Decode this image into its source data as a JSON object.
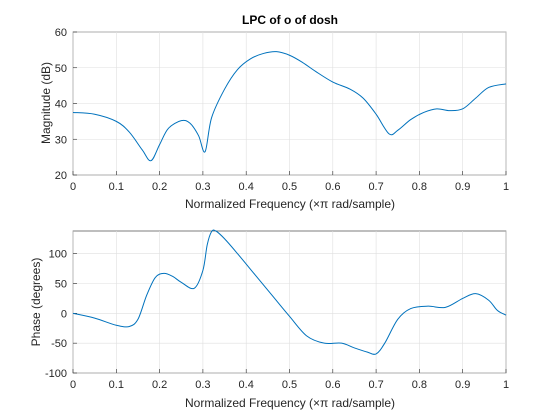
{
  "chart_data": [
    {
      "type": "line",
      "title": "LPC of o of dosh",
      "xlabel": "Normalized Frequency  (×π rad/sample)",
      "ylabel": "Magnitude (dB)",
      "xlim": [
        0,
        1
      ],
      "ylim": [
        20,
        60
      ],
      "xticks": [
        "0",
        "0.1",
        "0.2",
        "0.3",
        "0.4",
        "0.5",
        "0.6",
        "0.7",
        "0.8",
        "0.9",
        "1"
      ],
      "yticks": [
        "20",
        "30",
        "40",
        "50",
        "60"
      ],
      "grid": true,
      "series": [
        {
          "x": [
            0,
            0.05,
            0.1,
            0.13,
            0.16,
            0.18,
            0.2,
            0.22,
            0.25,
            0.27,
            0.29,
            0.305,
            0.32,
            0.35,
            0.38,
            0.41,
            0.44,
            0.47,
            0.5,
            0.53,
            0.56,
            0.6,
            0.64,
            0.67,
            0.7,
            0.73,
            0.75,
            0.78,
            0.81,
            0.84,
            0.87,
            0.9,
            0.93,
            0.96,
            1.0
          ],
          "values": [
            37.5,
            37,
            35,
            32,
            27,
            24,
            28.5,
            33,
            35.2,
            34.5,
            31,
            26.5,
            36,
            44,
            49.5,
            52.5,
            54,
            54.5,
            53.5,
            51.5,
            49,
            46,
            44,
            41.5,
            37,
            31.5,
            32.5,
            35.5,
            37.5,
            38.5,
            38,
            38.5,
            41.5,
            44.5,
            45.5
          ]
        }
      ],
      "line_color": "#0072bd"
    },
    {
      "type": "line",
      "title": "",
      "xlabel": "Normalized Frequency  (×π rad/sample)",
      "ylabel": "Phase (degrees)",
      "xlim": [
        0,
        1
      ],
      "ylim": [
        -100,
        138
      ],
      "xticks": [
        "0",
        "0.1",
        "0.2",
        "0.3",
        "0.4",
        "0.5",
        "0.6",
        "0.7",
        "0.8",
        "0.9",
        "1"
      ],
      "yticks": [
        "-100",
        "-50",
        "0",
        "50",
        "100"
      ],
      "grid": true,
      "series": [
        {
          "x": [
            0,
            0.05,
            0.1,
            0.13,
            0.15,
            0.17,
            0.19,
            0.21,
            0.23,
            0.25,
            0.28,
            0.3,
            0.31,
            0.32,
            0.33,
            0.35,
            0.38,
            0.42,
            0.46,
            0.5,
            0.54,
            0.58,
            0.62,
            0.65,
            0.68,
            0.7,
            0.72,
            0.75,
            0.78,
            0.82,
            0.86,
            0.9,
            0.93,
            0.96,
            0.98,
            1.0
          ],
          "values": [
            0,
            -8,
            -20,
            -22,
            -10,
            30,
            60,
            67,
            62,
            52,
            42,
            72,
            115,
            137,
            138,
            125,
            100,
            65,
            30,
            -5,
            -38,
            -50,
            -50,
            -58,
            -65,
            -68,
            -50,
            -10,
            8,
            12,
            10,
            25,
            33,
            22,
            5,
            -3
          ]
        }
      ],
      "line_color": "#0072bd"
    }
  ]
}
